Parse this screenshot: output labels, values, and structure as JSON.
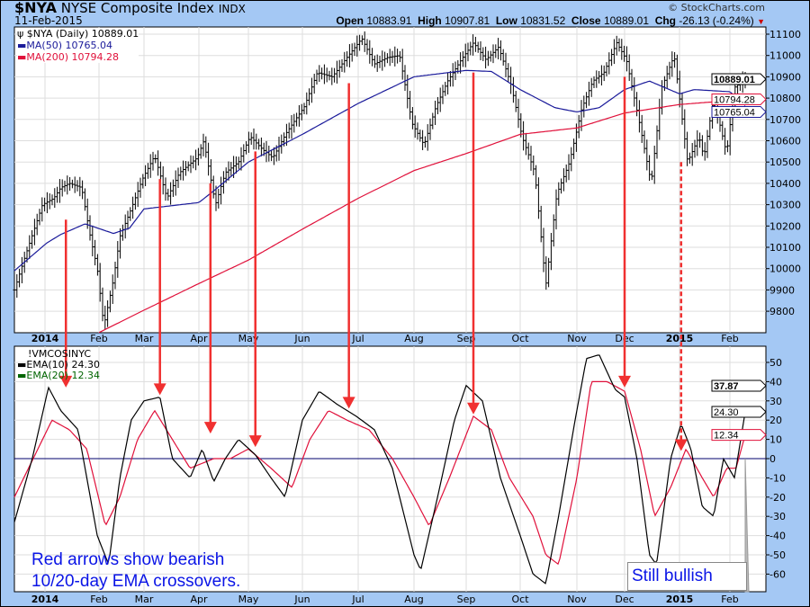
{
  "header": {
    "symbol": "$NYA",
    "name": "NYSE Composite Index",
    "exchange": "INDX",
    "date": "11-Feb-2015",
    "copyright": "© StockCharts.com",
    "open_label": "Open",
    "open": "10883.91",
    "high_label": "High",
    "high": "10907.81",
    "low_label": "Low",
    "low": "10831.52",
    "close_label": "Close",
    "close": "10889.01",
    "chg_label": "Chg",
    "chg": "-26.13 (-0.24%)",
    "chg_direction": "down"
  },
  "colors": {
    "background": "#a4c8f4",
    "price": "#000000",
    "ma50": "#1a1a9a",
    "ma200": "#e0103a",
    "ema10": "#000000",
    "ema20": "#e0103a",
    "arrow": "#f03030",
    "note": "#0a14e6",
    "zero_line": "#00006e"
  },
  "chart_data": [
    {
      "type": "line",
      "panel": "price",
      "legend": [
        "$NYA (Daily) 10889.01",
        "MA(50) 10765.04",
        "MA(200) 10794.28"
      ],
      "ylim": [
        9700,
        11140
      ],
      "yticks": [
        9800,
        9900,
        10000,
        10100,
        10200,
        10300,
        10400,
        10500,
        10600,
        10700,
        10800,
        10900,
        11000,
        11100
      ],
      "xticks": [
        "2014",
        "Feb",
        "Mar",
        "Apr",
        "May",
        "Jun",
        "Jul",
        "Aug",
        "Sep",
        "Oct",
        "Nov",
        "Dec",
        "2015",
        "Feb"
      ],
      "value_tags": [
        {
          "text": "10889.01",
          "value": 10889.01,
          "series": "price"
        },
        {
          "text": "10794.28",
          "value": 10794.28,
          "series": "ma200"
        },
        {
          "text": "10765.04",
          "value": 10765.04,
          "series": "ma50"
        }
      ],
      "price": [
        [
          "2013-12-20",
          9900
        ],
        [
          "2013-12-24",
          10050
        ],
        [
          "2013-12-31",
          10300
        ],
        [
          "2014-01-06",
          10330
        ],
        [
          "2014-01-10",
          10380
        ],
        [
          "2014-01-15",
          10400
        ],
        [
          "2014-01-22",
          10380
        ],
        [
          "2014-01-27",
          10150
        ],
        [
          "2014-01-31",
          10000
        ],
        [
          "2014-02-04",
          9730
        ],
        [
          "2014-02-10",
          9950
        ],
        [
          "2014-02-14",
          10150
        ],
        [
          "2014-02-21",
          10280
        ],
        [
          "2014-02-28",
          10420
        ],
        [
          "2014-03-07",
          10530
        ],
        [
          "2014-03-14",
          10330
        ],
        [
          "2014-03-21",
          10450
        ],
        [
          "2014-03-31",
          10520
        ],
        [
          "2014-04-04",
          10600
        ],
        [
          "2014-04-11",
          10300
        ],
        [
          "2014-04-17",
          10450
        ],
        [
          "2014-04-25",
          10500
        ],
        [
          "2014-05-02",
          10620
        ],
        [
          "2014-05-09",
          10560
        ],
        [
          "2014-05-15",
          10520
        ],
        [
          "2014-05-23",
          10640
        ],
        [
          "2014-06-02",
          10760
        ],
        [
          "2014-06-09",
          10920
        ],
        [
          "2014-06-17",
          10900
        ],
        [
          "2014-06-24",
          10980
        ],
        [
          "2014-07-03",
          11080
        ],
        [
          "2014-07-10",
          10960
        ],
        [
          "2014-07-17",
          10990
        ],
        [
          "2014-07-24",
          11000
        ],
        [
          "2014-07-31",
          10680
        ],
        [
          "2014-08-07",
          10580
        ],
        [
          "2014-08-14",
          10760
        ],
        [
          "2014-08-21",
          10880
        ],
        [
          "2014-08-29",
          10980
        ],
        [
          "2014-09-05",
          11060
        ],
        [
          "2014-09-12",
          10980
        ],
        [
          "2014-09-19",
          11040
        ],
        [
          "2014-09-26",
          10860
        ],
        [
          "2014-10-02",
          10620
        ],
        [
          "2014-10-09",
          10450
        ],
        [
          "2014-10-15",
          9920
        ],
        [
          "2014-10-21",
          10350
        ],
        [
          "2014-10-28",
          10500
        ],
        [
          "2014-11-04",
          10750
        ],
        [
          "2014-11-11",
          10880
        ],
        [
          "2014-11-18",
          10920
        ],
        [
          "2014-11-26",
          11060
        ],
        [
          "2014-12-02",
          10980
        ],
        [
          "2014-12-09",
          10700
        ],
        [
          "2014-12-16",
          10400
        ],
        [
          "2014-12-22",
          10850
        ],
        [
          "2014-12-29",
          11000
        ],
        [
          "2015-01-06",
          10500
        ],
        [
          "2015-01-13",
          10620
        ],
        [
          "2015-01-16",
          10520
        ],
        [
          "2015-01-22",
          10800
        ],
        [
          "2015-01-30",
          10540
        ],
        [
          "2015-02-04",
          10850
        ],
        [
          "2015-02-11",
          10889.01
        ]
      ],
      "ma50": [
        [
          "2013-12-20",
          9990
        ],
        [
          "2014-01-02",
          10120
        ],
        [
          "2014-01-10",
          10160
        ],
        [
          "2014-01-24",
          10210
        ],
        [
          "2014-02-10",
          10165
        ],
        [
          "2014-02-20",
          10190
        ],
        [
          "2014-03-01",
          10280
        ],
        [
          "2014-04-01",
          10310
        ],
        [
          "2014-04-10",
          10365
        ],
        [
          "2014-05-01",
          10500
        ],
        [
          "2014-06-01",
          10630
        ],
        [
          "2014-07-01",
          10775
        ],
        [
          "2014-08-01",
          10900
        ],
        [
          "2014-09-01",
          10930
        ],
        [
          "2014-09-15",
          10925
        ],
        [
          "2014-10-01",
          10840
        ],
        [
          "2014-10-20",
          10755
        ],
        [
          "2014-11-01",
          10735
        ],
        [
          "2014-11-15",
          10755
        ],
        [
          "2014-12-01",
          10840
        ],
        [
          "2014-12-15",
          10880
        ],
        [
          "2015-01-01",
          10820
        ],
        [
          "2015-01-10",
          10840
        ],
        [
          "2015-02-01",
          10830
        ],
        [
          "2015-02-11",
          10765.04
        ]
      ],
      "ma200": [
        [
          "2014-02-01",
          9700
        ],
        [
          "2014-03-01",
          9805
        ],
        [
          "2014-04-01",
          9930
        ],
        [
          "2014-05-01",
          10040
        ],
        [
          "2014-06-01",
          10185
        ],
        [
          "2014-07-01",
          10330
        ],
        [
          "2014-08-01",
          10460
        ],
        [
          "2014-09-01",
          10540
        ],
        [
          "2014-10-01",
          10630
        ],
        [
          "2014-11-01",
          10660
        ],
        [
          "2014-12-01",
          10730
        ],
        [
          "2015-01-01",
          10770
        ],
        [
          "2015-02-11",
          10794.28
        ]
      ]
    },
    {
      "type": "line",
      "panel": "indicator",
      "legend": [
        "!VMCOSINYC",
        "EMA(10) 24.30",
        "EMA(20) 12.34"
      ],
      "ylim": [
        -70,
        58
      ],
      "yticks": [
        -60,
        -50,
        -40,
        -30,
        -20,
        -10,
        0,
        10,
        20,
        30,
        40,
        50
      ],
      "xticks": [
        "2014",
        "Feb",
        "Mar",
        "Apr",
        "May",
        "Jun",
        "Jul",
        "Aug",
        "Sep",
        "Oct",
        "Nov",
        "Dec",
        "2015",
        "Feb"
      ],
      "value_tags": [
        {
          "text": "37.87",
          "value": 37.87,
          "series": "indicator"
        },
        {
          "text": "24.30",
          "value": 24.3,
          "series": "ema10"
        },
        {
          "text": "12.34",
          "value": 12.34,
          "series": "ema20"
        }
      ],
      "ema10": [
        [
          "2013-12-20",
          -33
        ],
        [
          "2013-12-27",
          0
        ],
        [
          "2014-01-03",
          37
        ],
        [
          "2014-01-10",
          25
        ],
        [
          "2014-01-20",
          15
        ],
        [
          "2014-01-31",
          -40
        ],
        [
          "2014-02-07",
          -55
        ],
        [
          "2014-02-14",
          -10
        ],
        [
          "2014-02-21",
          20
        ],
        [
          "2014-03-01",
          30
        ],
        [
          "2014-03-10",
          32
        ],
        [
          "2014-03-17",
          0
        ],
        [
          "2014-03-27",
          -10
        ],
        [
          "2014-04-03",
          5
        ],
        [
          "2014-04-10",
          -12
        ],
        [
          "2014-04-17",
          0
        ],
        [
          "2014-04-25",
          10
        ],
        [
          "2014-05-05",
          2
        ],
        [
          "2014-05-14",
          -10
        ],
        [
          "2014-05-22",
          -20
        ],
        [
          "2014-06-01",
          20
        ],
        [
          "2014-06-10",
          35
        ],
        [
          "2014-06-20",
          28
        ],
        [
          "2014-06-30",
          22
        ],
        [
          "2014-07-10",
          15
        ],
        [
          "2014-07-20",
          -5
        ],
        [
          "2014-08-01",
          -50
        ],
        [
          "2014-08-05",
          -58
        ],
        [
          "2014-08-15",
          -20
        ],
        [
          "2014-08-25",
          20
        ],
        [
          "2014-09-01",
          38
        ],
        [
          "2014-09-10",
          30
        ],
        [
          "2014-09-20",
          -10
        ],
        [
          "2014-10-01",
          -40
        ],
        [
          "2014-10-08",
          -60
        ],
        [
          "2014-10-15",
          -65
        ],
        [
          "2014-10-22",
          -30
        ],
        [
          "2014-10-31",
          20
        ],
        [
          "2014-11-07",
          52
        ],
        [
          "2014-11-15",
          54
        ],
        [
          "2014-11-25",
          36
        ],
        [
          "2014-12-01",
          32
        ],
        [
          "2014-12-08",
          0
        ],
        [
          "2014-12-15",
          -50
        ],
        [
          "2014-12-19",
          -55
        ],
        [
          "2014-12-27",
          0
        ],
        [
          "2015-01-02",
          18
        ],
        [
          "2015-01-08",
          5
        ],
        [
          "2015-01-15",
          -25
        ],
        [
          "2015-01-22",
          -30
        ],
        [
          "2015-01-28",
          0
        ],
        [
          "2015-02-04",
          -10
        ],
        [
          "2015-02-11",
          24.3
        ]
      ],
      "ema20": [
        [
          "2013-12-20",
          -20
        ],
        [
          "2014-01-05",
          20
        ],
        [
          "2014-01-15",
          15
        ],
        [
          "2014-01-25",
          5
        ],
        [
          "2014-02-05",
          -35
        ],
        [
          "2014-02-14",
          -20
        ],
        [
          "2014-02-25",
          10
        ],
        [
          "2014-03-07",
          25
        ],
        [
          "2014-03-17",
          10
        ],
        [
          "2014-03-27",
          -5
        ],
        [
          "2014-04-10",
          0
        ],
        [
          "2014-04-20",
          0
        ],
        [
          "2014-05-01",
          5
        ],
        [
          "2014-05-14",
          -5
        ],
        [
          "2014-05-26",
          -15
        ],
        [
          "2014-06-05",
          10
        ],
        [
          "2014-06-15",
          25
        ],
        [
          "2014-06-25",
          20
        ],
        [
          "2014-07-07",
          15
        ],
        [
          "2014-07-20",
          0
        ],
        [
          "2014-08-01",
          -20
        ],
        [
          "2014-08-10",
          -35
        ],
        [
          "2014-08-22",
          -10
        ],
        [
          "2014-09-05",
          22
        ],
        [
          "2014-09-15",
          15
        ],
        [
          "2014-09-25",
          -10
        ],
        [
          "2014-10-08",
          -30
        ],
        [
          "2014-10-15",
          -50
        ],
        [
          "2014-10-22",
          -55
        ],
        [
          "2014-11-01",
          -10
        ],
        [
          "2014-11-10",
          40
        ],
        [
          "2014-11-20",
          40
        ],
        [
          "2014-12-01",
          35
        ],
        [
          "2014-12-10",
          5
        ],
        [
          "2014-12-18",
          -30
        ],
        [
          "2014-12-27",
          -15
        ],
        [
          "2015-01-05",
          5
        ],
        [
          "2015-01-15",
          -10
        ],
        [
          "2015-01-22",
          -20
        ],
        [
          "2015-01-30",
          -5
        ],
        [
          "2015-02-05",
          -5
        ],
        [
          "2015-02-11",
          12.34
        ]
      ]
    }
  ],
  "annotations": {
    "arrows": [
      {
        "date": "2014-01-13",
        "from_price": 10230,
        "to_indicator": 37,
        "dashed": false
      },
      {
        "date": "2014-03-10",
        "from_price": 10420,
        "to_indicator": 33,
        "dashed": false
      },
      {
        "date": "2014-04-08",
        "from_price": 10400,
        "to_indicator": 13,
        "dashed": false
      },
      {
        "date": "2014-05-05",
        "from_price": 10550,
        "to_indicator": 6,
        "dashed": false
      },
      {
        "date": "2014-06-26",
        "from_price": 10870,
        "to_indicator": 26,
        "dashed": false
      },
      {
        "date": "2014-09-05",
        "from_price": 10920,
        "to_indicator": 23,
        "dashed": false
      },
      {
        "date": "2014-12-01",
        "from_price": 10900,
        "to_indicator": 37,
        "dashed": false
      },
      {
        "date": "2015-01-02",
        "from_price": 10500,
        "to_indicator": 4,
        "dashed": true
      }
    ],
    "note_line1": "Red arrows show bearish",
    "note_line2": "10/20-day EMA crossovers.",
    "still_bullish": "Still bullish"
  }
}
